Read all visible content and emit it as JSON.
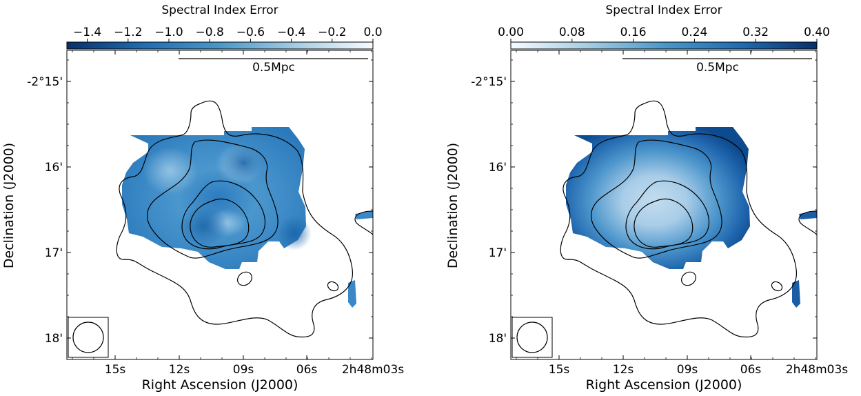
{
  "chart_data": [
    {
      "type": "heatmap",
      "panel": "left",
      "colorbar": {
        "label": "Spectral Index Error",
        "ticks": [
          "−1.4",
          "−1.2",
          "−1.0",
          "−0.8",
          "−0.6",
          "−0.4",
          "−0.2",
          "0.0"
        ],
        "tick_values": [
          -1.4,
          -1.2,
          -1.0,
          -0.8,
          -0.6,
          -0.4,
          -0.2,
          0.0
        ],
        "range": [
          -1.5,
          0.0
        ],
        "colormap": "reversed Blues",
        "color_low": "#08306b",
        "color_high": "#f7fbff"
      },
      "xlabel": "Right Ascension (J2000)",
      "ylabel": "Declination (J2000)",
      "xticks": [
        "15s",
        "12s",
        "09s",
        "06s",
        "2h48m03s"
      ],
      "yticks": [
        "-2°15'",
        "16'",
        "17'",
        "18'"
      ],
      "scalebar_label": "0.5Mpc",
      "contour_levels": 4
    },
    {
      "type": "heatmap",
      "panel": "right",
      "colorbar": {
        "label": "Spectral Index Error",
        "ticks": [
          "0.00",
          "0.08",
          "0.16",
          "0.24",
          "0.32",
          "0.40"
        ],
        "tick_values": [
          0.0,
          0.08,
          0.16,
          0.24,
          0.32,
          0.4
        ],
        "range": [
          0.0,
          0.4
        ],
        "colormap": "Blues",
        "color_low": "#f7fbff",
        "color_high": "#08306b"
      },
      "xlabel": "Right Ascension (J2000)",
      "ylabel": "Declination (J2000)",
      "xticks": [
        "15s",
        "12s",
        "09s",
        "06s",
        "2h48m03s"
      ],
      "yticks": [
        "-2°15'",
        "16'",
        "17'",
        "18'"
      ],
      "scalebar_label": "0.5Mpc",
      "contour_levels": 4
    }
  ]
}
